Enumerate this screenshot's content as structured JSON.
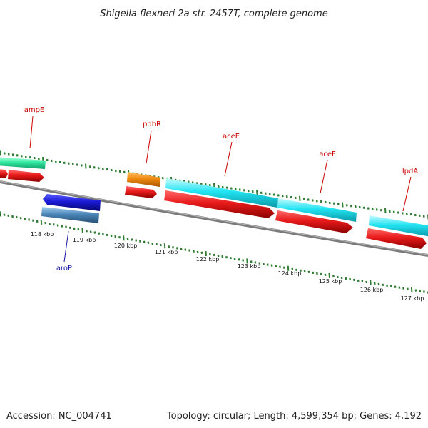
{
  "title": "Shigella flexneri 2a str. 2457T, complete genome",
  "footer": {
    "accession": "Accession: NC_004741",
    "summary": "Topology: circular; Length: 4,599,354 bp; Genes: 4,192"
  },
  "colors": {
    "backbone": "#7f7f7f",
    "ticks": "#2e7d32",
    "cds_red": "#e01a1a",
    "cds_cyan": "#20e3f0",
    "cds_teal": "#2ee8a0",
    "cds_orange": "#f08a10",
    "cds_blue": "#1a1ad6",
    "cds_steel": "#4a86b8",
    "label_red": "#cc0000",
    "label_blue": "#1a1aa6"
  },
  "gene_labels": [
    "ampE",
    "pdhR",
    "aceE",
    "aceF",
    "lpdA",
    "aroP"
  ],
  "scale_labels": [
    "118 kbp",
    "119 kbp",
    "120 kbp",
    "121 kbp",
    "122 kbp",
    "123 kbp",
    "124 kbp",
    "125 kbp",
    "126 kbp",
    "127 kbp"
  ]
}
